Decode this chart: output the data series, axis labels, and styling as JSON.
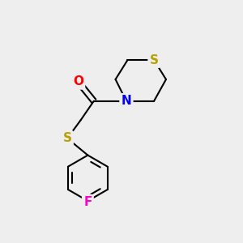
{
  "background_color": "#eeeeee",
  "atom_colors": {
    "S": "#b8a000",
    "N": "#0000ff",
    "O": "#ff0000",
    "F": "#ff00c8",
    "C": "#000000"
  },
  "bond_color": "#000000",
  "bond_width": 1.5,
  "font_size_atoms": 11,
  "figsize": [
    3.0,
    3.0
  ],
  "dpi": 100,
  "xlim": [
    0,
    10
  ],
  "ylim": [
    0,
    10
  ]
}
